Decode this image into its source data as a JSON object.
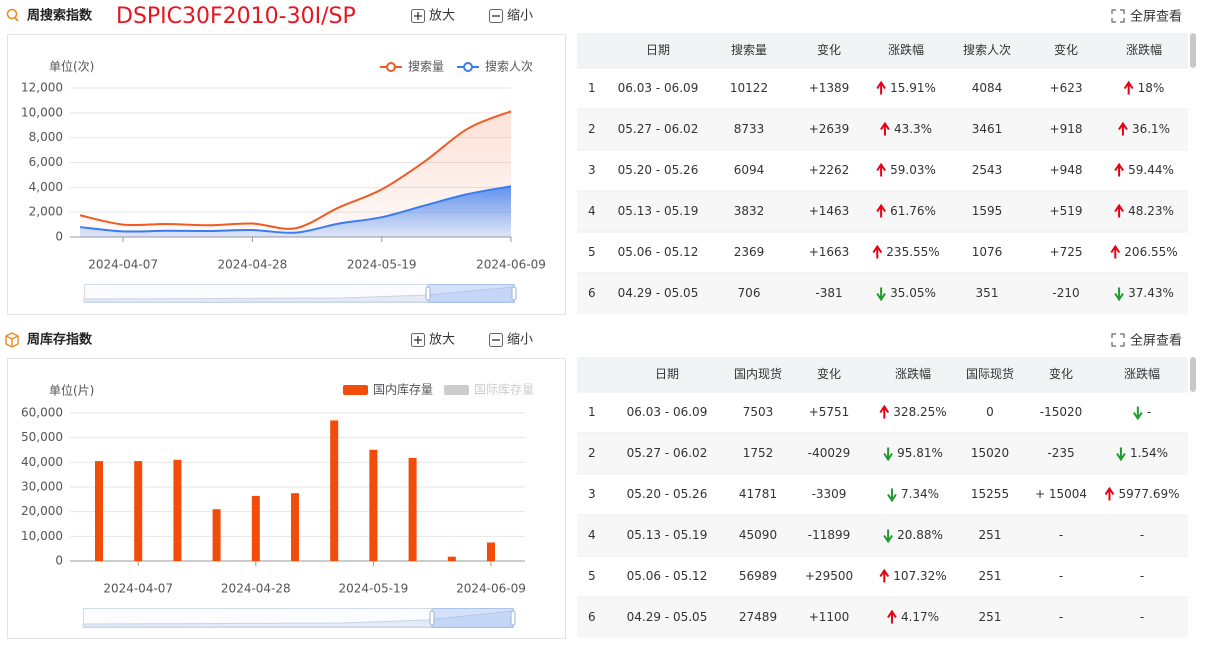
{
  "search_panel": {
    "title": "周搜索指数",
    "part_number": "DSPIC30F2010-30I/SP",
    "zoom_in": "放大",
    "zoom_out": "缩小",
    "fullscreen": "全屏查看",
    "table": {
      "columns": [
        "日期",
        "搜索量",
        "变化",
        "涨跌幅",
        "搜索人次",
        "变化",
        "涨跌幅"
      ],
      "rows": [
        [
          "1",
          "06.03 - 06.09",
          "10122",
          "+1389",
          {
            "dir": "up",
            "text": "15.91%"
          },
          "4084",
          "+623",
          {
            "dir": "up",
            "text": "18%"
          }
        ],
        [
          "2",
          "05.27 - 06.02",
          "8733",
          "+2639",
          {
            "dir": "up",
            "text": "43.3%"
          },
          "3461",
          "+918",
          {
            "dir": "up",
            "text": "36.1%"
          }
        ],
        [
          "3",
          "05.20 - 05.26",
          "6094",
          "+2262",
          {
            "dir": "up",
            "text": "59.03%"
          },
          "2543",
          "+948",
          {
            "dir": "up",
            "text": "59.44%"
          }
        ],
        [
          "4",
          "05.13 - 05.19",
          "3832",
          "+1463",
          {
            "dir": "up",
            "text": "61.76%"
          },
          "1595",
          "+519",
          {
            "dir": "up",
            "text": "48.23%"
          }
        ],
        [
          "5",
          "05.06 - 05.12",
          "2369",
          "+1663",
          {
            "dir": "up",
            "text": "235.55%"
          },
          "1076",
          "+725",
          {
            "dir": "up",
            "text": "206.55%"
          }
        ],
        [
          "6",
          "04.29 - 05.05",
          "706",
          "-381",
          {
            "dir": "down",
            "text": "35.05%"
          },
          "351",
          "-210",
          {
            "dir": "down",
            "text": "37.43%"
          }
        ]
      ]
    }
  },
  "stock_panel": {
    "title": "周库存指数",
    "zoom_in": "放大",
    "zoom_out": "缩小",
    "fullscreen": "全屏查看",
    "table": {
      "columns": [
        "日期",
        "国内现货",
        "变化",
        "涨跌幅",
        "国际现货",
        "变化",
        "涨跌幅"
      ],
      "rows": [
        [
          "1",
          "06.03 - 06.09",
          "7503",
          "+5751",
          {
            "dir": "up",
            "text": "328.25%"
          },
          "0",
          "-15020",
          {
            "dir": "down",
            "text": "-"
          }
        ],
        [
          "2",
          "05.27 - 06.02",
          "1752",
          "-40029",
          {
            "dir": "down",
            "text": "95.81%"
          },
          "15020",
          "-235",
          {
            "dir": "down",
            "text": "1.54%"
          }
        ],
        [
          "3",
          "05.20 - 05.26",
          "41781",
          "-3309",
          {
            "dir": "down",
            "text": "7.34%"
          },
          "15255",
          "+ 15004",
          {
            "dir": "up",
            "text": "5977.69%"
          }
        ],
        [
          "4",
          "05.13 - 05.19",
          "45090",
          "-11899",
          {
            "dir": "down",
            "text": "20.88%"
          },
          "251",
          "-",
          "-"
        ],
        [
          "5",
          "05.06 - 05.12",
          "56989",
          "+29500",
          {
            "dir": "up",
            "text": "107.32%"
          },
          "251",
          "-",
          "-"
        ],
        [
          "6",
          "04.29 - 05.05",
          "27489",
          "+1100",
          {
            "dir": "up",
            "text": "4.17%"
          },
          "251",
          "-",
          "-"
        ]
      ]
    }
  },
  "chart_data": [
    {
      "type": "line",
      "unit_label": "单位(次)",
      "legend": "top-right",
      "grid": true,
      "area": true,
      "x": [
        "2024-03-31",
        "2024-04-07",
        "2024-04-14",
        "2024-04-21",
        "2024-04-28",
        "2024-05-05",
        "2024-05-12",
        "2024-05-19",
        "2024-05-26",
        "2024-06-02",
        "2024-06-09"
      ],
      "xticks": [
        "2024-04-07",
        "2024-04-28",
        "2024-05-19",
        "2024-06-09"
      ],
      "ylim": [
        0,
        12000
      ],
      "yticks": [
        0,
        {
          "value": 2000,
          "label": "2,000"
        },
        {
          "value": 4000,
          "label": "4,000"
        },
        {
          "value": 6000,
          "label": "6,000"
        },
        {
          "value": 8000,
          "label": "8,000"
        },
        {
          "value": 10000,
          "label": "10,000"
        },
        {
          "value": 12000,
          "label": "12,000"
        }
      ],
      "series": [
        {
          "name": "搜索量",
          "color": "#f15a22",
          "values": [
            1750,
            1000,
            1050,
            950,
            1087,
            706,
            2369,
            3832,
            6094,
            8733,
            10122
          ]
        },
        {
          "name": "搜索人次",
          "color": "#3b7cf0",
          "values": [
            800,
            450,
            500,
            480,
            561,
            351,
            1076,
            1595,
            2543,
            3461,
            4084
          ]
        }
      ]
    },
    {
      "type": "bar",
      "unit_label": "单位(片)",
      "legend": "top-right",
      "grid": true,
      "x": [
        "2024-03-31",
        "2024-04-07",
        "2024-04-14",
        "2024-04-21",
        "2024-04-28",
        "2024-05-05",
        "2024-05-12",
        "2024-05-19",
        "2024-05-26",
        "2024-06-02",
        "2024-06-09"
      ],
      "xticks": [
        "2024-04-07",
        "2024-04-28",
        "2024-05-19",
        "2024-06-09"
      ],
      "ylim": [
        0,
        60000
      ],
      "yticks": [
        0,
        {
          "value": 10000,
          "label": "10,000"
        },
        {
          "value": 20000,
          "label": "20,000"
        },
        {
          "value": 30000,
          "label": "30,000"
        },
        {
          "value": 40000,
          "label": "40,000"
        },
        {
          "value": 50000,
          "label": "50,000"
        },
        {
          "value": 60000,
          "label": "60,000"
        }
      ],
      "series": [
        {
          "name": "国内库存量",
          "color": "#f24c0a",
          "values": [
            40500,
            40500,
            41000,
            21000,
            26389,
            27489,
            56989,
            45090,
            41781,
            1752,
            7503
          ]
        }
      ],
      "hidden_series": [
        {
          "name": "国际库存量",
          "color": "#cccccc"
        }
      ]
    }
  ]
}
